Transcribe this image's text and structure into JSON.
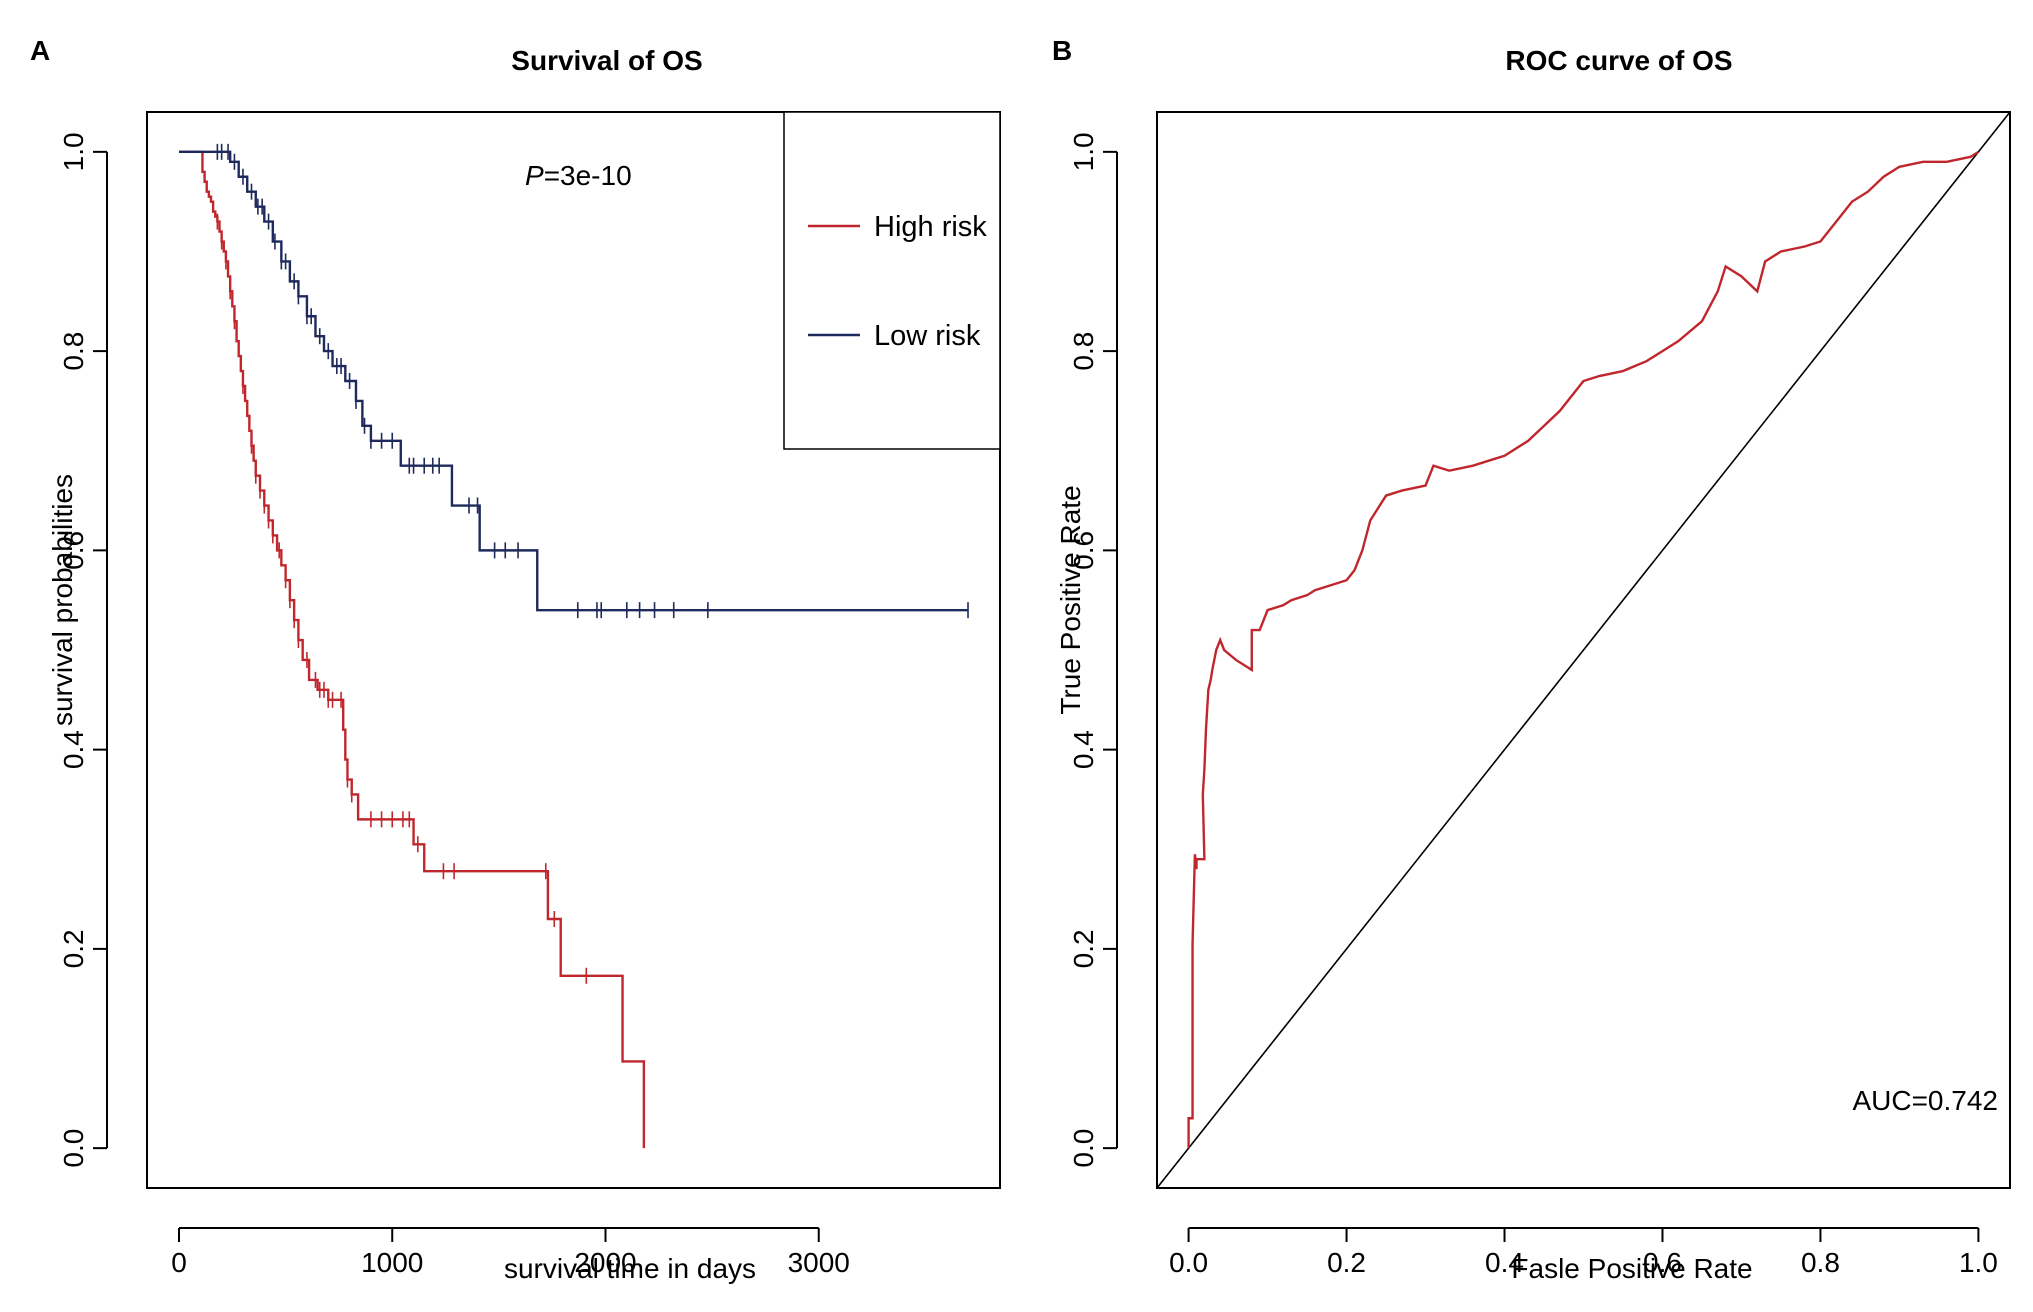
{
  "figure": {
    "panel_a_letter": "A",
    "panel_b_letter": "B"
  },
  "chart_data": [
    {
      "type": "line",
      "subtype": "kaplan-meier",
      "title": "Survival of OS",
      "xlabel": "survival time in days",
      "ylabel": "survival probabilities",
      "xlim": [
        -150,
        3850
      ],
      "ylim": [
        -0.04,
        1.04
      ],
      "xticks": [
        0,
        1000,
        2000,
        3000
      ],
      "xtick_labels": [
        "0",
        "1000",
        "2000",
        "3000"
      ],
      "yticks": [
        0.0,
        0.2,
        0.4,
        0.6,
        0.8,
        1.0
      ],
      "ytick_labels": [
        "0.0",
        "0.2",
        "0.4",
        "0.6",
        "0.8",
        "1.0"
      ],
      "annotation_p_italic": "P",
      "annotation_p_value": "=3e-10",
      "legend_position": "top-right",
      "series": [
        {
          "name": "High risk",
          "color": "#c0272d",
          "steps": [
            [
              0,
              1.0
            ],
            [
              100,
              1.0
            ],
            [
              110,
              0.98
            ],
            [
              120,
              0.97
            ],
            [
              130,
              0.96
            ],
            [
              140,
              0.955
            ],
            [
              150,
              0.95
            ],
            [
              160,
              0.94
            ],
            [
              170,
              0.935
            ],
            [
              180,
              0.93
            ],
            [
              190,
              0.92
            ],
            [
              200,
              0.91
            ],
            [
              210,
              0.9
            ],
            [
              220,
              0.89
            ],
            [
              230,
              0.875
            ],
            [
              240,
              0.86
            ],
            [
              250,
              0.845
            ],
            [
              260,
              0.83
            ],
            [
              270,
              0.81
            ],
            [
              280,
              0.795
            ],
            [
              290,
              0.78
            ],
            [
              300,
              0.765
            ],
            [
              310,
              0.75
            ],
            [
              320,
              0.735
            ],
            [
              330,
              0.72
            ],
            [
              340,
              0.705
            ],
            [
              350,
              0.69
            ],
            [
              360,
              0.675
            ],
            [
              380,
              0.66
            ],
            [
              400,
              0.645
            ],
            [
              420,
              0.63
            ],
            [
              440,
              0.615
            ],
            [
              460,
              0.6
            ],
            [
              480,
              0.585
            ],
            [
              500,
              0.57
            ],
            [
              520,
              0.55
            ],
            [
              540,
              0.53
            ],
            [
              560,
              0.51
            ],
            [
              580,
              0.49
            ],
            [
              610,
              0.47
            ],
            [
              650,
              0.46
            ],
            [
              700,
              0.45
            ],
            [
              770,
              0.42
            ],
            [
              780,
              0.39
            ],
            [
              790,
              0.37
            ],
            [
              810,
              0.355
            ],
            [
              840,
              0.33
            ],
            [
              1100,
              0.305
            ],
            [
              1150,
              0.278
            ],
            [
              1730,
              0.23
            ],
            [
              1790,
              0.173
            ],
            [
              2080,
              0.087
            ],
            [
              2180,
              0.0
            ]
          ],
          "end_x": 2180,
          "censor_x": [
            180,
            200,
            220,
            240,
            260,
            300,
            340,
            360,
            380,
            400,
            420,
            440,
            470,
            500,
            520,
            540,
            560,
            600,
            640,
            660,
            680,
            700,
            720,
            760,
            790,
            810,
            900,
            950,
            1000,
            1050,
            1080,
            1120,
            1240,
            1290,
            1720,
            1760,
            1910
          ]
        },
        {
          "name": "Low risk",
          "color": "#1f2a5c",
          "steps": [
            [
              0,
              1.0
            ],
            [
              240,
              0.99
            ],
            [
              280,
              0.975
            ],
            [
              320,
              0.96
            ],
            [
              360,
              0.945
            ],
            [
              400,
              0.93
            ],
            [
              440,
              0.91
            ],
            [
              480,
              0.89
            ],
            [
              520,
              0.87
            ],
            [
              560,
              0.855
            ],
            [
              600,
              0.835
            ],
            [
              640,
              0.815
            ],
            [
              680,
              0.8
            ],
            [
              720,
              0.785
            ],
            [
              780,
              0.77
            ],
            [
              830,
              0.75
            ],
            [
              860,
              0.725
            ],
            [
              900,
              0.71
            ],
            [
              1040,
              0.685
            ],
            [
              1280,
              0.645
            ],
            [
              1410,
              0.6
            ],
            [
              1680,
              0.54
            ],
            [
              3700,
              0.54
            ]
          ],
          "end_x": 3700,
          "censor_x": [
            180,
            200,
            230,
            260,
            300,
            340,
            370,
            390,
            420,
            450,
            480,
            500,
            540,
            560,
            600,
            620,
            660,
            700,
            740,
            760,
            800,
            830,
            870,
            900,
            950,
            1000,
            1080,
            1100,
            1150,
            1190,
            1220,
            1360,
            1400,
            1480,
            1530,
            1590,
            1870,
            1960,
            1980,
            2100,
            2160,
            2230,
            2320,
            2480,
            3700
          ]
        }
      ]
    },
    {
      "type": "line",
      "subtype": "roc",
      "title": "ROC curve of OS",
      "xlabel": "Fasle Positive Rate",
      "ylabel": "True Positive Rate",
      "xlim": [
        -0.04,
        1.04
      ],
      "ylim": [
        -0.04,
        1.04
      ],
      "xticks": [
        0.0,
        0.2,
        0.4,
        0.6,
        0.8,
        1.0
      ],
      "xtick_labels": [
        "0.0",
        "0.2",
        "0.4",
        "0.6",
        "0.8",
        "1.0"
      ],
      "yticks": [
        0.0,
        0.2,
        0.4,
        0.6,
        0.8,
        1.0
      ],
      "ytick_labels": [
        "0.0",
        "0.2",
        "0.4",
        "0.6",
        "0.8",
        "1.0"
      ],
      "annotation": "AUC=0.742",
      "diagonal": true,
      "series": [
        {
          "name": "ROC",
          "color": "#c0272d",
          "x": [
            0.0,
            0.0,
            0.005,
            0.005,
            0.005,
            0.008,
            0.01,
            0.01,
            0.02,
            0.018,
            0.02,
            0.022,
            0.025,
            0.028,
            0.03,
            0.035,
            0.04,
            0.045,
            0.06,
            0.08,
            0.08,
            0.09,
            0.1,
            0.12,
            0.13,
            0.15,
            0.16,
            0.18,
            0.2,
            0.21,
            0.22,
            0.23,
            0.25,
            0.27,
            0.3,
            0.31,
            0.33,
            0.36,
            0.38,
            0.4,
            0.43,
            0.45,
            0.47,
            0.5,
            0.52,
            0.55,
            0.58,
            0.6,
            0.62,
            0.65,
            0.67,
            0.68,
            0.7,
            0.72,
            0.73,
            0.75,
            0.78,
            0.8,
            0.82,
            0.84,
            0.86,
            0.88,
            0.9,
            0.93,
            0.96,
            0.99,
            1.0
          ],
          "y": [
            0.0,
            0.03,
            0.03,
            0.14,
            0.205,
            0.295,
            0.28,
            0.29,
            0.29,
            0.355,
            0.38,
            0.42,
            0.46,
            0.47,
            0.48,
            0.5,
            0.51,
            0.5,
            0.49,
            0.48,
            0.52,
            0.52,
            0.54,
            0.545,
            0.55,
            0.555,
            0.56,
            0.565,
            0.57,
            0.58,
            0.6,
            0.63,
            0.655,
            0.66,
            0.665,
            0.685,
            0.68,
            0.685,
            0.69,
            0.695,
            0.71,
            0.725,
            0.74,
            0.77,
            0.775,
            0.78,
            0.79,
            0.8,
            0.81,
            0.83,
            0.86,
            0.885,
            0.875,
            0.86,
            0.89,
            0.9,
            0.905,
            0.91,
            0.93,
            0.95,
            0.96,
            0.975,
            0.985,
            0.99,
            0.99,
            0.995,
            1.0
          ]
        }
      ]
    }
  ]
}
